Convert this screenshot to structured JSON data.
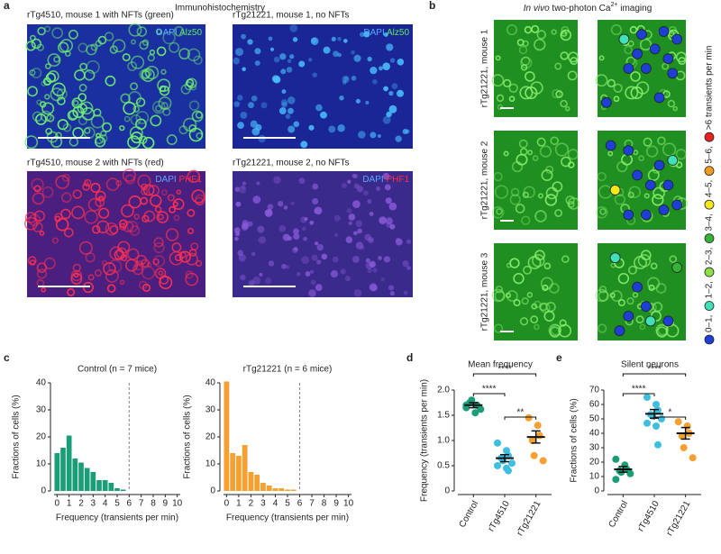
{
  "panel_a": {
    "label": "a",
    "title": "Immunohistochemistry",
    "images": [
      {
        "caption": "rTg4510, mouse 1 with NFTs (green)",
        "stains": [
          "DAPI",
          "Alz50"
        ]
      },
      {
        "caption": "rTg21221, mouse 1, no NFTs",
        "stains": [
          "DAPI",
          "Alz50"
        ]
      },
      {
        "caption": "rTg4510, mouse 2 with NFTs (red)",
        "stains": [
          "DAPI",
          "PHF1"
        ]
      },
      {
        "caption": "rTg21221, mouse 2, no NFTs",
        "stains": [
          "DAPI",
          "PHF1"
        ]
      }
    ]
  },
  "panel_b": {
    "label": "b",
    "title": [
      "In vivo",
      " two-photon Ca",
      "2+",
      " imaging"
    ],
    "rows": [
      "rTg21221, mouse 1",
      "rTg21221, mouse 2",
      "rTg21221, mouse 3"
    ],
    "legend": [
      {
        "label": "0–1,",
        "color": "#1d3fd6"
      },
      {
        "label": "1–2,",
        "color": "#40e0b8"
      },
      {
        "label": "2–3,",
        "color": "#8ee04a"
      },
      {
        "label": "3–4,",
        "color": "#36b336"
      },
      {
        "label": "4–5,",
        "color": "#f2e81e"
      },
      {
        "label": "5–6,",
        "color": "#f59a1e"
      },
      {
        "label": ">6 transients per min",
        "color": "#e82020"
      }
    ]
  },
  "panel_c": {
    "label": "c"
  },
  "chart_data": [
    {
      "type": "histogram",
      "title": "Control (n = 7 mice)",
      "x_label": "Frequency (transients per min)",
      "y_label": "Fractions of cells (%)",
      "bins": [
        0,
        0.5,
        1,
        1.5,
        2,
        2.5,
        3,
        3.5,
        4,
        4.5,
        5,
        5.5,
        6
      ],
      "values": [
        14,
        16,
        20.5,
        12,
        10.5,
        8.5,
        7,
        4,
        4,
        3,
        1,
        0.5
      ],
      "color": "#1a9e77",
      "xlim": [
        0,
        10.5
      ],
      "xticks": [
        0,
        1,
        2,
        3,
        4,
        5,
        6,
        7,
        8,
        9,
        10
      ],
      "ylim": [
        0,
        40
      ],
      "yticks": [
        0,
        10,
        20,
        30,
        40
      ],
      "vline": 6
    },
    {
      "type": "histogram",
      "title": "rTg21221 (n = 6 mice)",
      "x_label": "Frequency (transients per min)",
      "y_label": "Fractions of cells (%)",
      "bins": [
        0,
        0.5,
        1,
        1.5,
        2,
        2.5,
        3,
        3.5,
        4,
        4.5,
        5,
        5.5,
        6
      ],
      "values": [
        40.5,
        14,
        13,
        17,
        7,
        6,
        3,
        2,
        1,
        1,
        0.5,
        0.5
      ],
      "color": "#f5a030",
      "xlim": [
        0,
        10.5
      ],
      "xticks": [
        0,
        1,
        2,
        3,
        4,
        5,
        6,
        7,
        8,
        9,
        10
      ],
      "ylim": [
        0,
        40
      ],
      "yticks": [
        0,
        10,
        20,
        30,
        40
      ],
      "vline": 6
    },
    {
      "type": "dot",
      "panel_label": "d",
      "title": "Mean frequency",
      "y_label": "Frequency (transients per min)",
      "categories": [
        "Control",
        "rTg4510",
        "rTg21221"
      ],
      "colors": [
        "#1a9e77",
        "#3fbfe0",
        "#f5a030"
      ],
      "values": [
        [
          1.65,
          1.55,
          1.7,
          1.75,
          1.8,
          1.62,
          1.7
        ],
        [
          0.95,
          0.8,
          0.7,
          0.65,
          0.6,
          0.55,
          0.5,
          0.45,
          0.4
        ],
        [
          1.45,
          1.3,
          1.1,
          1.0,
          0.7,
          0.6
        ]
      ],
      "means": [
        1.7,
        0.65,
        1.07
      ],
      "sems": [
        0.05,
        0.07,
        0.12
      ],
      "ylim": [
        0,
        2
      ],
      "yticks": [
        0,
        0.5,
        {
          "value": 1,
          "label": "1.0"
        },
        1.5,
        {
          "value": 2,
          "label": "2.0"
        }
      ],
      "significance": [
        {
          "from": 0,
          "to": 2,
          "label": "****"
        },
        {
          "from": 0,
          "to": 1,
          "label": "****"
        },
        {
          "from": 1,
          "to": 2,
          "label": "**"
        }
      ]
    },
    {
      "type": "dot",
      "panel_label": "e",
      "title": "Silent neurons",
      "y_label": "Fractions of cells (%)",
      "categories": [
        "Control",
        "rTg4510",
        "rTg21221"
      ],
      "colors": [
        "#1a9e77",
        "#3fbfe0",
        "#f5a030"
      ],
      "values": [
        [
          22,
          18,
          15,
          14,
          13,
          12,
          8
        ],
        [
          65,
          60,
          56,
          53,
          52,
          50,
          47,
          45,
          32
        ],
        [
          48,
          45,
          40,
          38,
          30,
          23
        ]
      ],
      "means": [
        15,
        53.5,
        40
      ],
      "sems": [
        2,
        3,
        4
      ],
      "ylim": [
        0,
        70
      ],
      "yticks": [
        0,
        10,
        20,
        30,
        40,
        50,
        60,
        70
      ],
      "significance": [
        {
          "from": 0,
          "to": 2,
          "label": "****"
        },
        {
          "from": 0,
          "to": 1,
          "label": "****"
        },
        {
          "from": 1,
          "to": 2,
          "label": "*"
        }
      ]
    }
  ]
}
